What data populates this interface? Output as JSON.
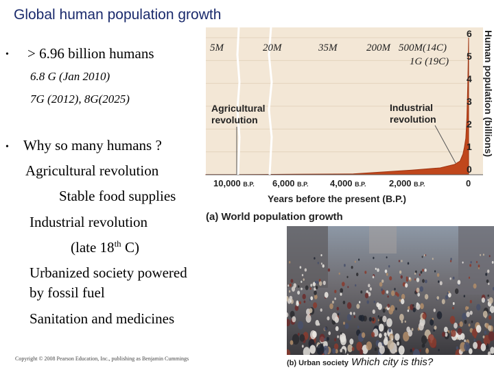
{
  "title": "Global human population growth",
  "bullets": [
    {
      "marker": "•",
      "text": "> 6.96 billion humans"
    },
    {
      "marker": "•",
      "text": "Why so many humans ?"
    }
  ],
  "sub_lines": {
    "pop_2010": "6.8 G (Jan 2010)",
    "pop_future": "7G (2012), 8G(2025)",
    "agri": "Agricultural revolution",
    "food": "Stable food supplies",
    "industrial": "Industrial revolution",
    "late18": "(late 18",
    "late18_sup": "th",
    "late18_end": " C)",
    "urban_1": "Urbanized society powered",
    "urban_2": "by fossil fuel",
    "sanitation": "Sanitation and medicines"
  },
  "copyright": "Copyright © 2008 Pearson Education, Inc., publishing as Benjamin Cummings",
  "population_annotations": [
    "5M",
    "20M",
    "35M",
    "200M",
    "500M(14C)",
    "1G (19C)"
  ],
  "chart_data": {
    "type": "area",
    "xlabel": "Years before the present (B.P.)",
    "ylabel": "Human population (billions)",
    "x_ticks": [
      {
        "main": "10,000",
        "unit": "B.P."
      },
      {
        "main": "6,000",
        "unit": "B.P."
      },
      {
        "main": "4,000",
        "unit": "B.P."
      },
      {
        "main": "2,000",
        "unit": "B.P."
      },
      {
        "main": "0",
        "unit": ""
      }
    ],
    "y_ticks": [
      "0",
      "1",
      "2",
      "3",
      "4",
      "5",
      "6"
    ],
    "ylim": [
      0,
      6
    ],
    "annotations": [
      {
        "line1": "Agricultural",
        "line2": "revolution"
      },
      {
        "line1": "Industrial",
        "line2": "revolution"
      }
    ],
    "x": [
      10000,
      6000,
      4000,
      2000,
      1000,
      500,
      300,
      200,
      150,
      100,
      60,
      30,
      10,
      0
    ],
    "y": [
      0.005,
      0.02,
      0.035,
      0.2,
      0.3,
      0.45,
      0.6,
      0.9,
      1.2,
      1.6,
      2.5,
      4.0,
      5.3,
      6.0
    ],
    "caption": "(a) World population growth",
    "fill_color": "#c0471c"
  },
  "photo": {
    "caption": "(b) Urban society",
    "question": "Which city is this?"
  }
}
